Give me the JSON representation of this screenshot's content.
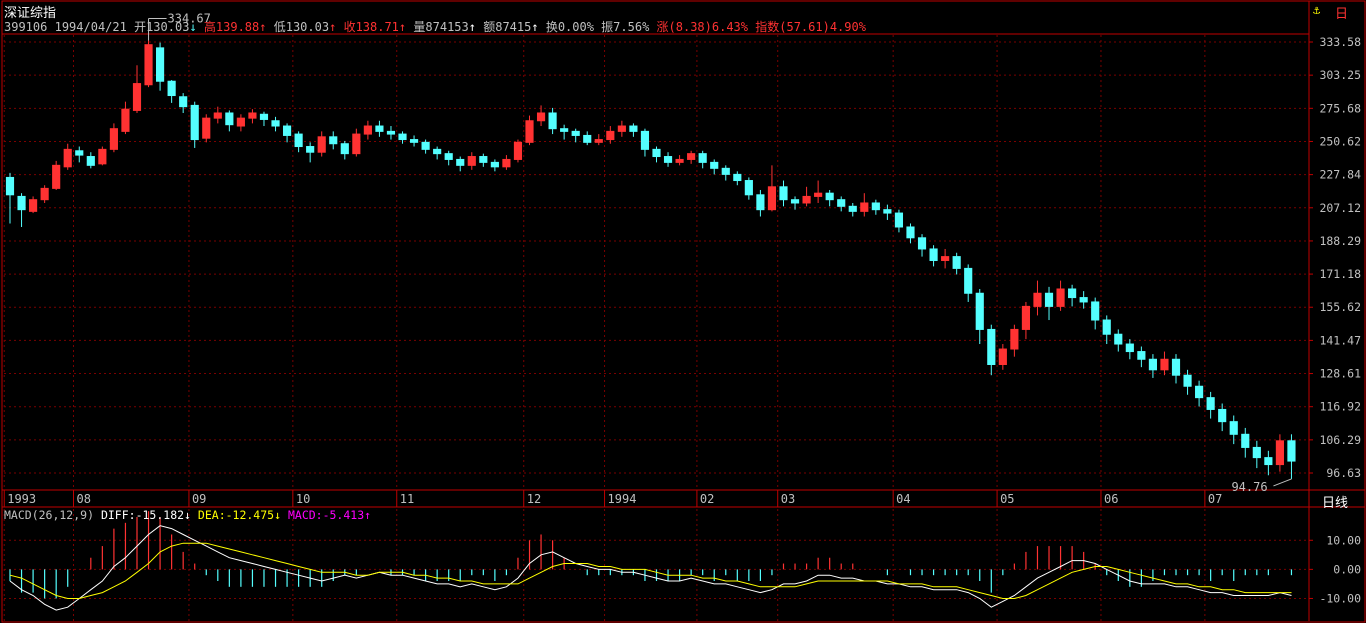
{
  "header": {
    "title": "深证综指",
    "code": "399106",
    "date": "1994/04/21",
    "open": "开130.03",
    "open_arrow": "↓",
    "high": "高139.88",
    "high_arrow": "↑",
    "low": "低130.03",
    "low_arrow": "↑",
    "close": "收138.71",
    "close_arrow": "↑",
    "volume": "量874153",
    "volume_arrow": "↑",
    "amount": "额87415",
    "amount_arrow": "↑",
    "turnover": "换0.00%",
    "amplitude": "振7.56%",
    "change": "涨(8.38)6.43%",
    "index_change": "指数(57.61)4.90%"
  },
  "corner_icons": [
    "anchor-icon",
    "window-icon"
  ],
  "period_button": "日线",
  "macd": {
    "label": "MACD(26,12,9)",
    "diff": "DIFF:-15.182",
    "diff_arrow": "↓",
    "dea": "DEA:-12.475",
    "dea_arrow": "↓",
    "macd": "MACD:-5.413",
    "macd_arrow": "↑"
  },
  "colors": {
    "up": "#ff3232",
    "down": "#54ffff",
    "grid": "#7a0000",
    "axis": "#c00000",
    "diff_line": "#ffffff",
    "dea_line": "#ffff00",
    "macd_text": "#ff00ff"
  },
  "chart_data": [
    {
      "type": "candlestick",
      "x_ticks": [
        "1993",
        "08",
        "09",
        "10",
        "11",
        "12",
        "1994",
        "02",
        "03",
        "04",
        "05",
        "06",
        "07"
      ],
      "y_ticks": [
        "333.58",
        "303.25",
        "275.68",
        "250.62",
        "227.84",
        "207.12",
        "188.29",
        "171.18",
        "155.62",
        "141.47",
        "128.61",
        "116.92",
        "106.29",
        "96.63"
      ],
      "y_scale": "log",
      "ylim": [
        96.63,
        333.58
      ],
      "annotations": [
        {
          "text": "334.67",
          "kind": "max"
        },
        {
          "text": "94.76",
          "kind": "min"
        }
      ],
      "grid": true,
      "candles": [
        [
          226,
          215,
          229,
          198
        ],
        [
          214,
          206,
          216,
          196
        ],
        [
          205,
          212,
          214,
          204
        ],
        [
          212,
          219,
          221,
          210
        ],
        [
          219,
          234,
          237,
          218
        ],
        [
          233,
          245,
          249,
          231
        ],
        [
          244,
          241,
          247,
          236
        ],
        [
          240,
          234,
          243,
          232
        ],
        [
          235,
          245,
          247,
          234
        ],
        [
          245,
          260,
          264,
          243
        ],
        [
          258,
          275,
          281,
          256
        ],
        [
          274,
          296,
          312,
          272
        ],
        [
          295,
          331,
          335,
          293
        ],
        [
          328,
          298,
          333,
          290
        ],
        [
          298,
          286,
          299,
          280
        ],
        [
          285,
          277,
          288,
          272
        ],
        [
          278,
          252,
          281,
          246
        ],
        [
          253,
          268,
          271,
          250
        ],
        [
          268,
          272,
          277,
          264
        ],
        [
          272,
          263,
          274,
          258
        ],
        [
          262,
          268,
          271,
          258
        ],
        [
          268,
          272,
          275,
          264
        ],
        [
          271,
          267,
          273,
          262
        ],
        [
          266,
          262,
          269,
          258
        ],
        [
          262,
          255,
          264,
          250
        ],
        [
          256,
          247,
          258,
          243
        ],
        [
          247,
          243,
          250,
          236
        ],
        [
          243,
          254,
          258,
          240
        ],
        [
          254,
          249,
          258,
          245
        ],
        [
          249,
          242,
          251,
          238
        ],
        [
          242,
          256,
          260,
          240
        ],
        [
          256,
          262,
          266,
          252
        ],
        [
          262,
          258,
          266,
          254
        ],
        [
          258,
          256,
          262,
          252
        ],
        [
          256,
          252,
          258,
          249
        ],
        [
          252,
          250,
          255,
          247
        ],
        [
          250,
          245,
          252,
          242
        ],
        [
          245,
          242,
          247,
          238
        ],
        [
          242,
          238,
          244,
          234
        ],
        [
          238,
          234,
          240,
          230
        ],
        [
          234,
          240,
          243,
          231
        ],
        [
          240,
          236,
          242,
          233
        ],
        [
          236,
          233,
          238,
          230
        ],
        [
          233,
          238,
          241,
          231
        ],
        [
          238,
          250,
          252,
          236
        ],
        [
          250,
          266,
          270,
          248
        ],
        [
          266,
          272,
          278,
          262
        ],
        [
          272,
          260,
          276,
          256
        ],
        [
          260,
          258,
          263,
          252
        ],
        [
          258,
          255,
          260,
          250
        ],
        [
          255,
          250,
          258,
          248
        ],
        [
          250,
          252,
          256,
          248
        ],
        [
          252,
          258,
          262,
          249
        ],
        [
          258,
          262,
          266,
          254
        ],
        [
          262,
          258,
          264,
          254
        ],
        [
          258,
          245,
          260,
          240
        ],
        [
          245,
          240,
          247,
          236
        ],
        [
          240,
          236,
          243,
          233
        ],
        [
          236,
          238,
          241,
          234
        ],
        [
          238,
          242,
          244,
          235
        ],
        [
          242,
          236,
          244,
          232
        ],
        [
          236,
          232,
          238,
          228
        ],
        [
          232,
          228,
          234,
          224
        ],
        [
          228,
          224,
          230,
          221
        ],
        [
          224,
          215,
          226,
          212
        ],
        [
          215,
          206,
          218,
          202
        ],
        [
          206,
          220,
          234,
          205
        ],
        [
          220,
          212,
          224,
          208
        ],
        [
          212,
          210,
          214,
          206
        ],
        [
          210,
          214,
          220,
          208
        ],
        [
          214,
          216,
          224,
          210
        ],
        [
          216,
          212,
          218,
          208
        ],
        [
          212,
          208,
          214,
          205
        ],
        [
          208,
          205,
          210,
          202
        ],
        [
          205,
          210,
          216,
          202
        ],
        [
          210,
          206,
          212,
          203
        ],
        [
          206,
          204,
          209,
          200
        ],
        [
          204,
          196,
          206,
          193
        ],
        [
          196,
          190,
          198,
          187
        ],
        [
          190,
          184,
          192,
          180
        ],
        [
          184,
          178,
          186,
          175
        ],
        [
          178,
          180,
          184,
          174
        ],
        [
          180,
          174,
          182,
          171
        ],
        [
          174,
          162,
          176,
          158
        ],
        [
          162,
          146,
          164,
          140
        ],
        [
          146,
          132,
          148,
          128
        ],
        [
          132,
          138,
          140,
          130
        ],
        [
          138,
          146,
          148,
          135
        ],
        [
          146,
          156,
          158,
          142
        ],
        [
          156,
          162,
          168,
          152
        ],
        [
          162,
          156,
          165,
          150
        ],
        [
          156,
          164,
          168,
          154
        ],
        [
          164,
          160,
          166,
          156
        ],
        [
          160,
          158,
          163,
          155
        ],
        [
          158,
          150,
          160,
          146
        ],
        [
          150,
          144,
          152,
          140
        ],
        [
          144,
          140,
          146,
          137
        ],
        [
          140,
          137,
          142,
          134
        ],
        [
          137,
          134,
          139,
          131
        ],
        [
          134,
          130,
          136,
          127
        ],
        [
          130,
          134,
          137,
          128
        ],
        [
          134,
          128,
          136,
          125
        ],
        [
          128,
          124,
          130,
          121
        ],
        [
          124,
          120,
          126,
          117
        ],
        [
          120,
          116,
          122,
          113
        ],
        [
          116,
          112,
          118,
          109
        ],
        [
          112,
          108,
          114,
          105
        ],
        [
          108,
          104,
          110,
          101
        ],
        [
          104,
          101,
          106,
          98
        ],
        [
          101,
          99,
          103,
          96
        ],
        [
          99,
          106,
          108,
          97
        ],
        [
          106,
          100,
          108,
          95
        ]
      ]
    },
    {
      "type": "macd",
      "y_ticks": [
        "10.00",
        "0.00",
        "-10.00"
      ],
      "ylim": [
        -15,
        18
      ],
      "diff": [
        -4,
        -7,
        -9,
        -12,
        -14,
        -13,
        -10,
        -7,
        -4,
        1,
        4,
        8,
        12,
        15,
        14,
        12,
        10,
        8,
        6,
        4,
        3,
        2,
        1,
        0,
        -1,
        -2,
        -3,
        -4,
        -3,
        -2,
        -3,
        -2,
        -1,
        -2,
        -2,
        -3,
        -4,
        -5,
        -5,
        -6,
        -5,
        -6,
        -7,
        -6,
        -3,
        2,
        5,
        6,
        4,
        2,
        1,
        0,
        0,
        -1,
        -1,
        -2,
        -3,
        -4,
        -4,
        -3,
        -4,
        -5,
        -5,
        -6,
        -7,
        -8,
        -7,
        -5,
        -5,
        -4,
        -2,
        -2,
        -3,
        -3,
        -4,
        -4,
        -5,
        -5,
        -6,
        -6,
        -7,
        -7,
        -7,
        -8,
        -10,
        -13,
        -11,
        -9,
        -6,
        -3,
        -1,
        1,
        3,
        3,
        2,
        0,
        -2,
        -4,
        -5,
        -5,
        -5,
        -6,
        -6,
        -7,
        -8,
        -8,
        -9,
        -9,
        -9,
        -9,
        -8,
        -9
      ],
      "dea": [
        -2,
        -3,
        -5,
        -7,
        -9,
        -10,
        -10,
        -9,
        -8,
        -6,
        -4,
        -1,
        2,
        6,
        8,
        9,
        9,
        9,
        8,
        7,
        6,
        5,
        4,
        3,
        2,
        1,
        0,
        -1,
        -1,
        -1,
        -2,
        -2,
        -1,
        -1,
        -1,
        -2,
        -2,
        -3,
        -3,
        -4,
        -4,
        -5,
        -5,
        -5,
        -5,
        -3,
        -1,
        1,
        2,
        2,
        2,
        1,
        1,
        0,
        0,
        0,
        -1,
        -2,
        -2,
        -2,
        -3,
        -3,
        -4,
        -4,
        -5,
        -6,
        -6,
        -6,
        -6,
        -5,
        -4,
        -4,
        -4,
        -4,
        -4,
        -4,
        -4,
        -5,
        -5,
        -5,
        -6,
        -6,
        -6,
        -7,
        -8,
        -9,
        -10,
        -10,
        -9,
        -7,
        -5,
        -3,
        -1,
        0,
        1,
        1,
        0,
        -1,
        -2,
        -3,
        -4,
        -5,
        -5,
        -6,
        -6,
        -7,
        -7,
        -8,
        -8,
        -8,
        -8,
        -8
      ]
    }
  ]
}
